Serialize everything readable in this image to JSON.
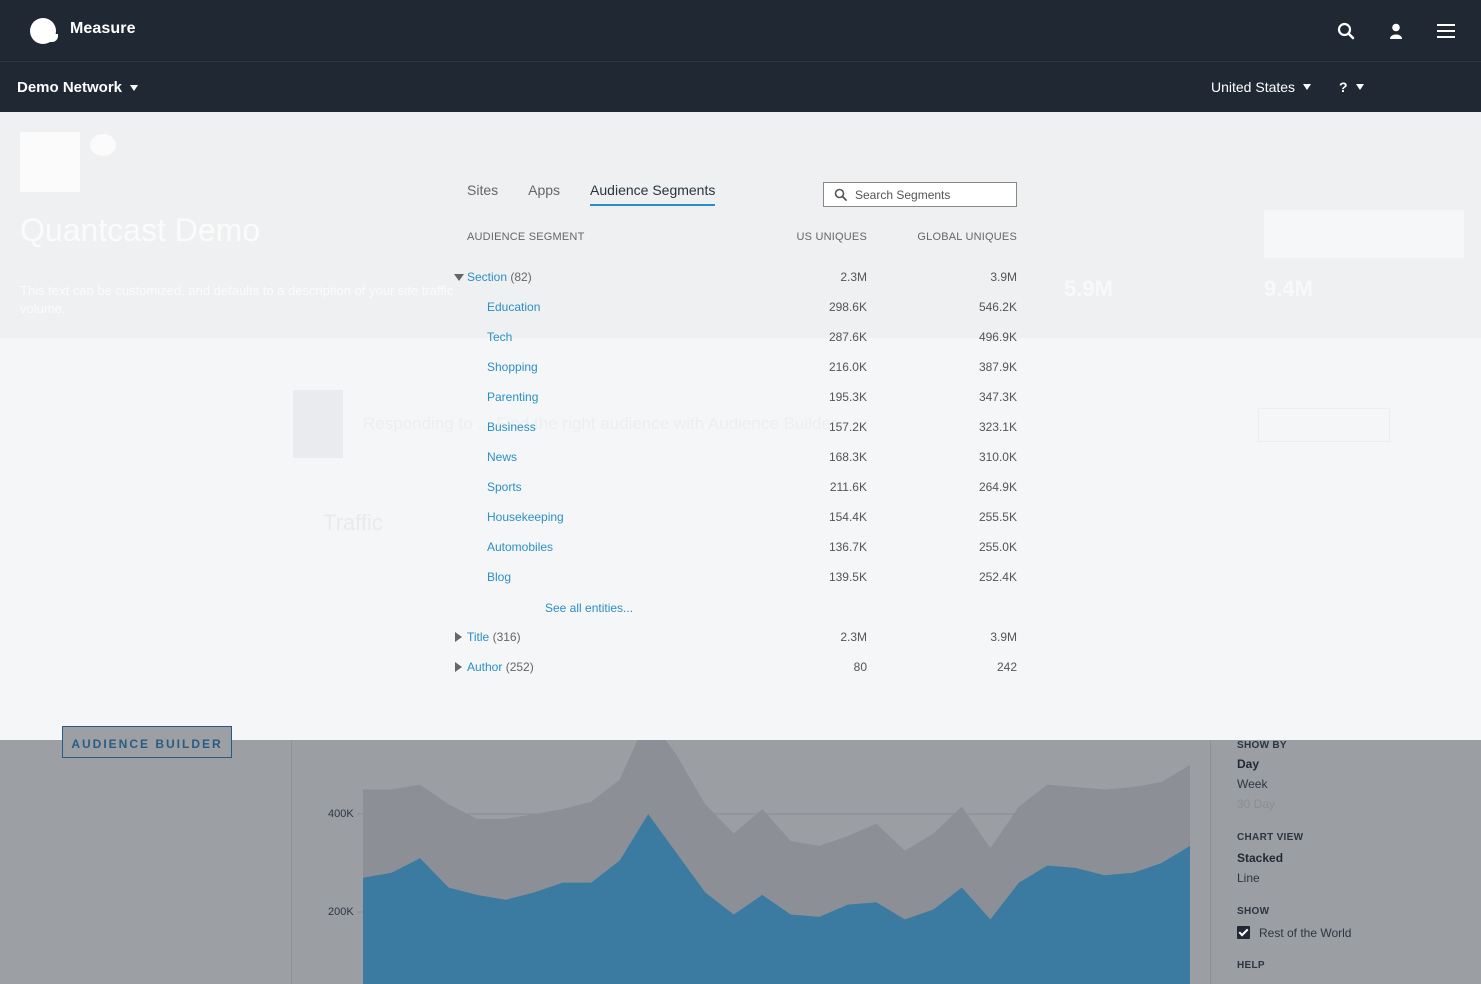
{
  "app": {
    "brand": "Measure",
    "network": "Demo Network",
    "country": "United States",
    "help": "?"
  },
  "header_icons": [
    "search-icon",
    "user-icon",
    "menu-icon"
  ],
  "popover": {
    "tabs": [
      "Sites",
      "Apps",
      "Audience Segments"
    ],
    "active_tab": "Audience Segments",
    "search_placeholder": "Search Segments",
    "columns": {
      "segment": "AUDIENCE SEGMENT",
      "us": "US UNIQUES",
      "global": "GLOBAL UNIQUES"
    },
    "groups": [
      {
        "name": "Section",
        "count": "(82)",
        "us": "2.3M",
        "global": "3.9M",
        "expanded": true
      },
      {
        "name": "Title",
        "count": "(316)",
        "us": "2.3M",
        "global": "3.9M",
        "expanded": false
      },
      {
        "name": "Author",
        "count": "(252)",
        "us": "80",
        "global": "242",
        "expanded": false
      }
    ],
    "section_items": [
      {
        "name": "Education",
        "us": "298.6K",
        "global": "546.2K"
      },
      {
        "name": "Tech",
        "us": "287.6K",
        "global": "496.9K"
      },
      {
        "name": "Shopping",
        "us": "216.0K",
        "global": "387.9K"
      },
      {
        "name": "Parenting",
        "us": "195.3K",
        "global": "347.3K"
      },
      {
        "name": "Business",
        "us": "157.2K",
        "global": "323.1K"
      },
      {
        "name": "News",
        "us": "168.3K",
        "global": "310.0K"
      },
      {
        "name": "Sports",
        "us": "211.6K",
        "global": "264.9K"
      },
      {
        "name": "Housekeeping",
        "us": "154.4K",
        "global": "255.5K"
      },
      {
        "name": "Automobiles",
        "us": "136.7K",
        "global": "255.0K"
      },
      {
        "name": "Blog",
        "us": "139.5K",
        "global": "252.4K"
      }
    ],
    "see_all": "See all entities..."
  },
  "background": {
    "title": "Quantcast Demo",
    "description": "This text can be customized, and defaults to a description of your site traffic volume.",
    "stat_1": "5.9M",
    "stat_2": "9.4M",
    "banner": "Responding to ... Find the right audience with Audience Builder",
    "traffic": "Traffic"
  },
  "left_panel": {
    "audience_builder": "AUDIENCE BUILDER"
  },
  "right_panel": {
    "show_by_label": "SHOW BY",
    "show_by_options": [
      "Day",
      "Week",
      "30 Day"
    ],
    "show_by_selected": "Day",
    "chart_view_label": "CHART VIEW",
    "chart_view_options": [
      "Stacked",
      "Line"
    ],
    "chart_view_selected": "Stacked",
    "show_label": "SHOW",
    "show_option": "Rest of the World",
    "show_checked": true,
    "help_label": "HELP"
  },
  "chart_data": {
    "type": "area",
    "ylabel_ticks": [
      "400K",
      "200K"
    ],
    "ylim": [
      0,
      600000
    ],
    "series": [
      {
        "values": [
          270000,
          280000,
          310000,
          250000,
          235000,
          225000,
          240000,
          260000,
          260000,
          305000,
          400000,
          320000,
          240000,
          195000,
          235000,
          195000,
          190000,
          215000,
          220000,
          185000,
          205000,
          250000,
          185000,
          260000,
          295000,
          290000,
          275000,
          280000,
          300000,
          335000
        ]
      },
      {
        "values": [
          180000,
          170000,
          150000,
          170000,
          155000,
          165000,
          160000,
          150000,
          165000,
          165000,
          200000,
          200000,
          180000,
          165000,
          175000,
          150000,
          145000,
          140000,
          160000,
          140000,
          155000,
          165000,
          145000,
          155000,
          165000,
          165000,
          175000,
          175000,
          165000,
          165000
        ]
      }
    ],
    "colors": [
      "#3b7ba1",
      "#8c9096"
    ]
  }
}
